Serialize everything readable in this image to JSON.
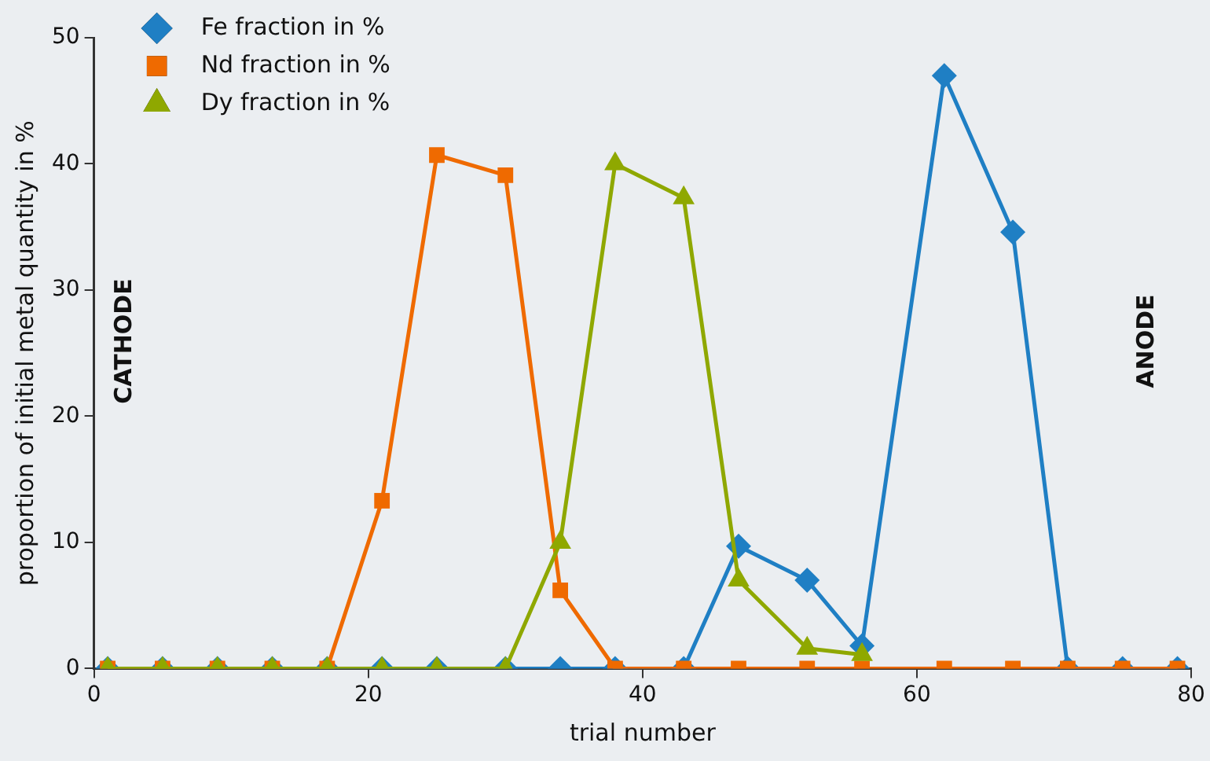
{
  "chart_data": {
    "type": "line",
    "xlabel": "trial number",
    "ylabel": "proportion of initial metal quantity in %",
    "xlim": [
      0,
      80
    ],
    "xticks": [
      0,
      20,
      40,
      60,
      80
    ],
    "ylim": [
      0,
      50
    ],
    "yticks": [
      0,
      10,
      20,
      30,
      40,
      50
    ],
    "grid": false,
    "legend": "top left",
    "line_style": "solid",
    "annotations": [
      "CATHODE",
      "ANODE"
    ],
    "series": [
      {
        "name": "Fe fraction in %",
        "color": "#1f7fc4",
        "marker": "diamond",
        "x": [
          1,
          5,
          9,
          13,
          17,
          21,
          25,
          30,
          34,
          38,
          43,
          47,
          52,
          56,
          62,
          67,
          71,
          75,
          79
        ],
        "values": [
          0,
          0,
          0,
          0,
          0,
          0,
          0,
          0,
          0,
          0,
          0,
          9.7,
          7.0,
          1.8,
          47.0,
          34.6,
          0,
          0,
          0
        ]
      },
      {
        "name": "Nd fraction in %",
        "color": "#ef6a00",
        "marker": "square",
        "x": [
          1,
          5,
          9,
          13,
          17,
          21,
          25,
          30,
          34,
          38,
          43,
          47,
          52,
          56,
          62,
          67,
          71,
          75,
          79
        ],
        "values": [
          0,
          0,
          0,
          0,
          0,
          13.3,
          40.7,
          39.1,
          6.2,
          0,
          0,
          0,
          0,
          0,
          0,
          0,
          0,
          0,
          0
        ]
      },
      {
        "name": "Dy fraction in %",
        "color": "#8fa800",
        "marker": "triangle",
        "x": [
          1,
          5,
          9,
          13,
          17,
          21,
          25,
          30,
          34,
          38,
          43,
          47,
          52,
          56
        ],
        "values": [
          0,
          0,
          0,
          0,
          0,
          0,
          0,
          0,
          10.0,
          40.0,
          37.3,
          7.0,
          1.6,
          1.1
        ]
      }
    ]
  }
}
